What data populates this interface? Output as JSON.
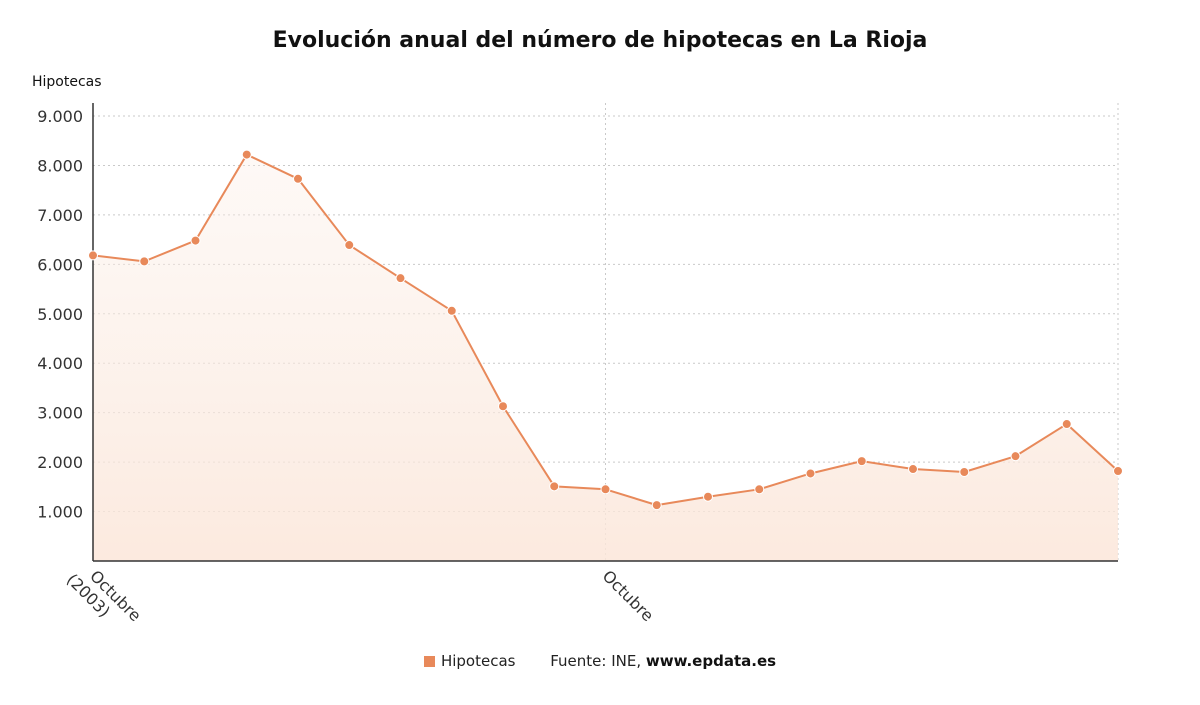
{
  "chart_data": {
    "type": "line",
    "title": "Evolución anual del número de hipotecas en La Rioja",
    "ylabel": "Hipotecas",
    "ylim": [
      0,
      9000
    ],
    "y_ticks": [
      {
        "value": 1000,
        "label": "1.000"
      },
      {
        "value": 2000,
        "label": "2.000"
      },
      {
        "value": 3000,
        "label": "3.000"
      },
      {
        "value": 4000,
        "label": "4.000"
      },
      {
        "value": 5000,
        "label": "5.000"
      },
      {
        "value": 6000,
        "label": "6.000"
      },
      {
        "value": 7000,
        "label": "7.000"
      },
      {
        "value": 8000,
        "label": "8.000"
      },
      {
        "value": 9000,
        "label": "9.000"
      }
    ],
    "x_tick_labels": [
      {
        "index": 0,
        "lines": [
          "Octubre",
          "(2003)"
        ]
      },
      {
        "index": 10,
        "lines": [
          "Octubre"
        ]
      }
    ],
    "series": [
      {
        "name": "Hipotecas",
        "color": "#e8895a",
        "values": [
          6180,
          6060,
          6480,
          8220,
          7730,
          6390,
          5720,
          5060,
          3130,
          1510,
          1450,
          1130,
          1300,
          1450,
          1770,
          2020,
          1860,
          1800,
          2120,
          2770,
          1820
        ]
      }
    ],
    "grid": true,
    "legend": {
      "position": "bottom",
      "source_prefix": "Fuente: INE, ",
      "source_site": "www.epdata.es"
    }
  }
}
